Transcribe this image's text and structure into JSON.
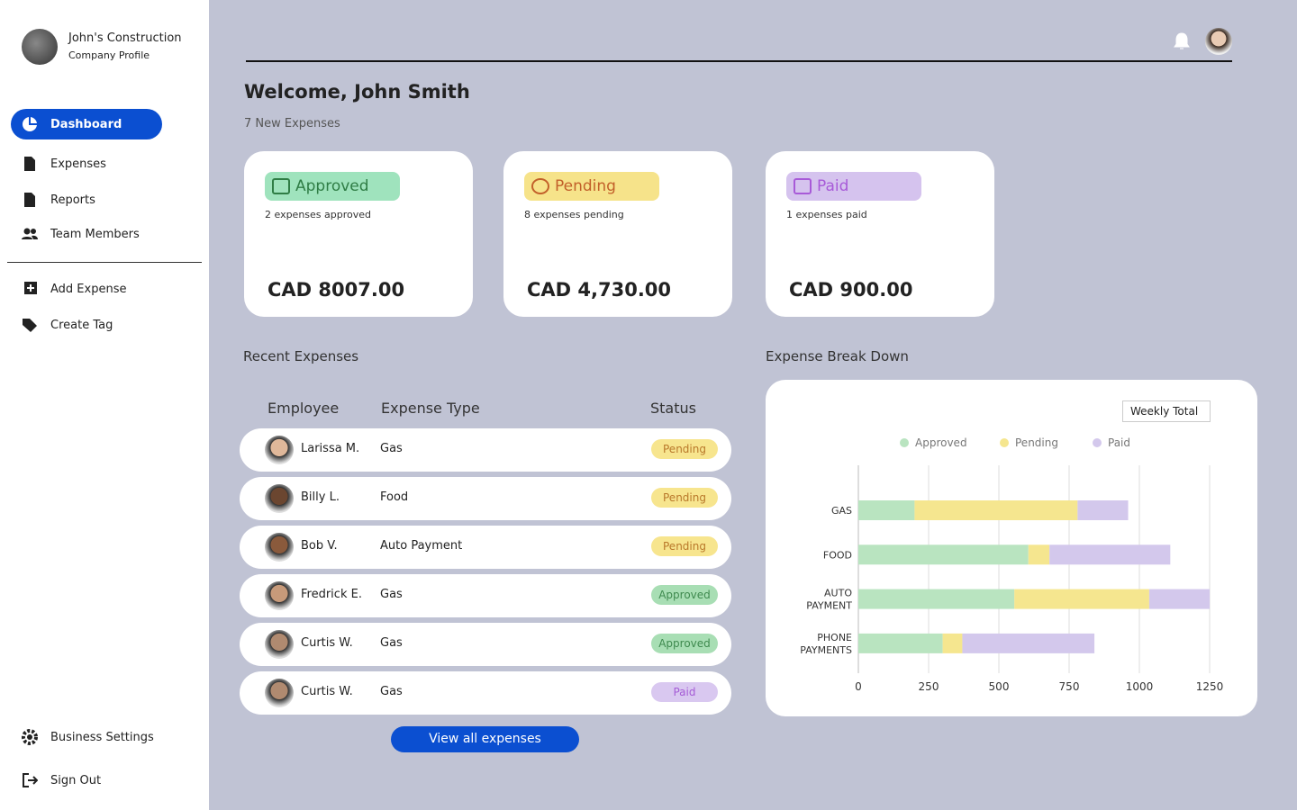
{
  "sidebar": {
    "company": "John's Construction",
    "subtitle": "Company Profile",
    "nav": [
      "Dashboard",
      "Expenses",
      "Reports",
      "Team Members"
    ],
    "actions": [
      "Add Expense",
      "Create Tag"
    ],
    "footer": [
      "Business Settings",
      "Sign Out"
    ]
  },
  "header": {
    "title": "Welcome, John Smith",
    "subtitle": "7 New Expenses"
  },
  "cards": [
    {
      "label": "Approved",
      "note": "2 expenses approved",
      "amount": "CAD 8007.00"
    },
    {
      "label": "Pending",
      "note": "8 expenses pending",
      "amount": "CAD 4,730.00"
    },
    {
      "label": "Paid",
      "note": "1 expenses paid",
      "amount": "CAD 900.00"
    }
  ],
  "recent": {
    "title": "Recent Expenses",
    "columns": [
      "Employee",
      "Expense Type",
      "Status"
    ],
    "rows": [
      [
        "Larissa M.",
        "Gas",
        "Pending"
      ],
      [
        "Billy L.",
        "Food",
        "Pending"
      ],
      [
        "Bob V.",
        "Auto Payment",
        "Pending"
      ],
      [
        "Fredrick E.",
        "Gas",
        "Approved"
      ],
      [
        "Curtis W.",
        "Gas",
        "Approved"
      ],
      [
        "Curtis W.",
        "Gas",
        "Paid"
      ]
    ],
    "button": "View all expenses"
  },
  "chart_data": {
    "type": "bar",
    "orientation": "horizontal",
    "stacked": true,
    "title": "Expense Break Down",
    "filter": "Weekly Total",
    "categories": [
      "GAS",
      "FOOD",
      "AUTO PAYMENT",
      "PHONE PAYMENTS"
    ],
    "series": [
      {
        "name": "Approved",
        "color": "#b9e4c0",
        "values": [
          200,
          605,
          555,
          300
        ]
      },
      {
        "name": "Pending",
        "color": "#f5e68f",
        "values": [
          580,
          75,
          480,
          70
        ]
      },
      {
        "name": "Paid",
        "color": "#d3c8ec",
        "values": [
          180,
          430,
          215,
          470
        ]
      }
    ],
    "xlim": [
      0,
      1250
    ],
    "xticks": [
      0,
      250,
      500,
      750,
      1000,
      1250
    ],
    "grid": true,
    "legend": "top"
  }
}
